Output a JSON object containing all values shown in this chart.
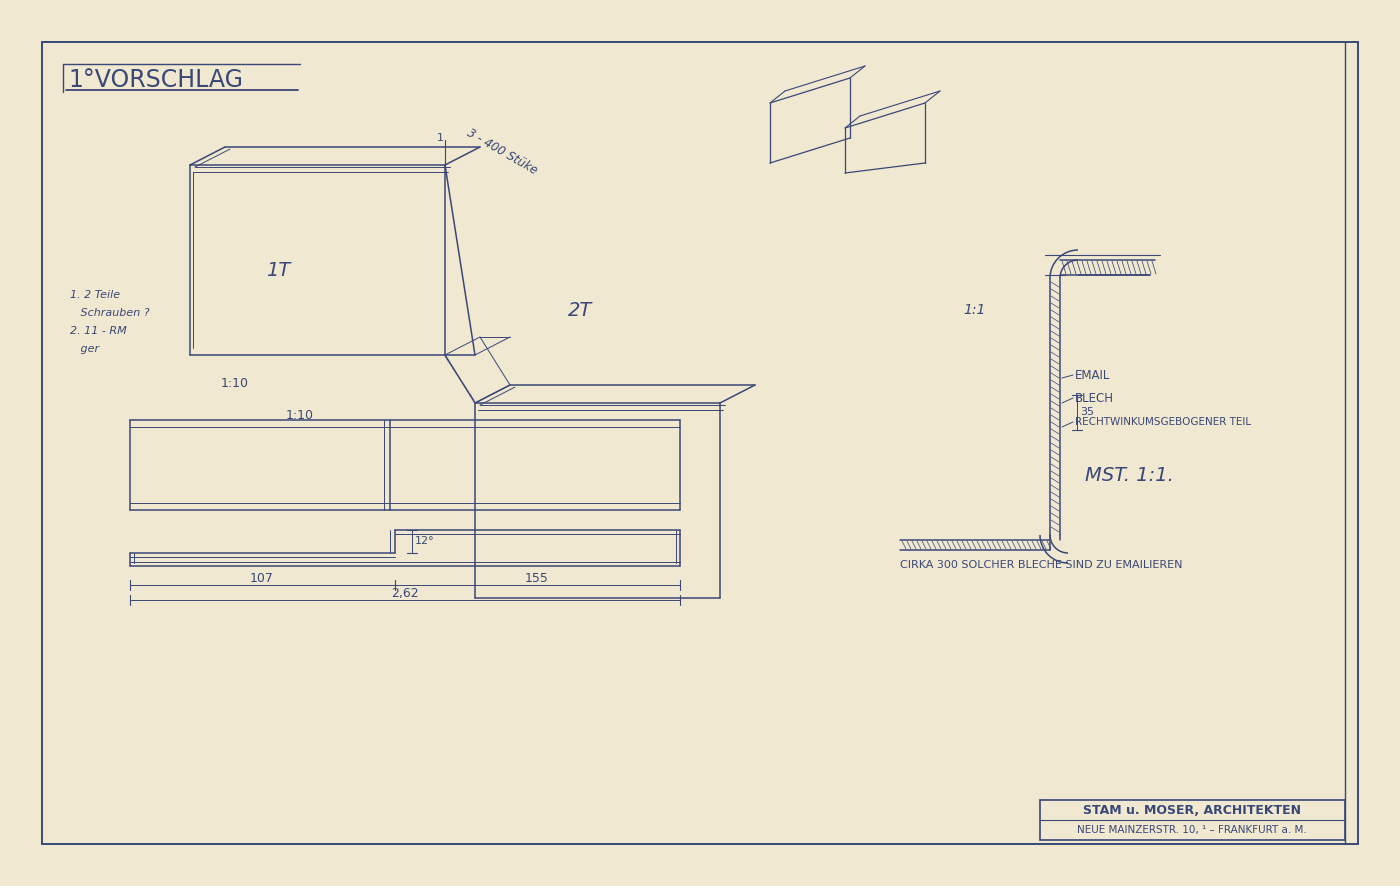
{
  "bg_color": "#f0e8d0",
  "line_color": "#3a4878",
  "title": "1°VORSCHLAG",
  "scale_axo": "1:10",
  "scale_detail": "1:1",
  "label_1T": "1T",
  "label_2T": "2T",
  "annotation_3400": "3 - 400 Stüke",
  "notes_left": "1. 2 Teile\n   Schrauben ?\n2. 11 - RM\n   ger",
  "email_label": "EMAIL",
  "blech_label": "BLECH",
  "rechtwink": "RECHTWINKUMSGEBOGENER TEIL",
  "mst": "MST. 1:1.",
  "circa": "CIRKA 300 SOLCHER BLECHE SIND ZU EMAILIEREN",
  "firm_line1": "STAM u. MOSER, ARCHITEKTEN",
  "firm_line2": "NEUE MAINZERSTR. 10, ¹ – FRANKFURT a. M.",
  "dim_107": "107",
  "dim_155": "155",
  "dim_262": "2,62",
  "dim_step": "12°"
}
